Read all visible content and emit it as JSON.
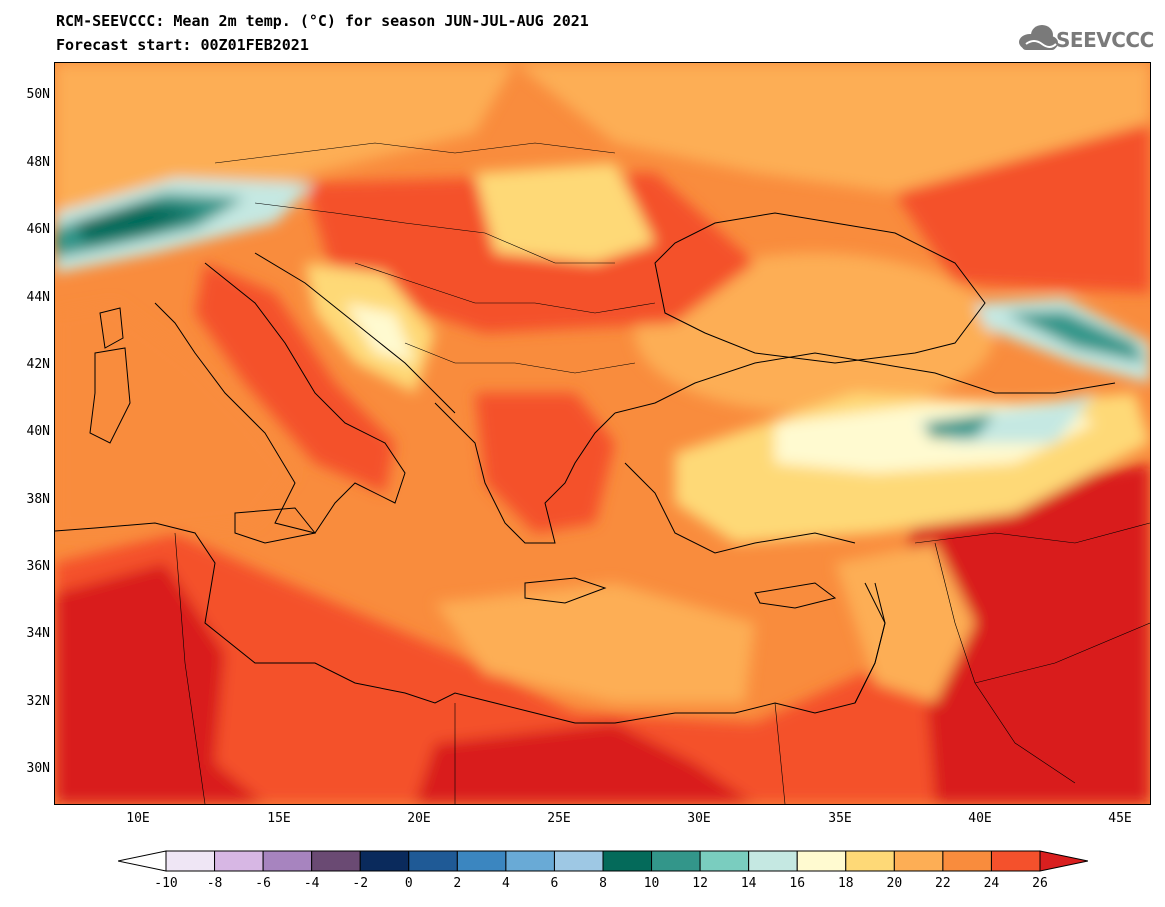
{
  "header": {
    "title": "RCM-SEEVCCC: Mean 2m temp. (°C) for season JUN-JUL-AUG 2021",
    "subtitle": "Forecast start: 00Z01FEB2021",
    "logo_text": "SEEVCCC"
  },
  "map": {
    "type": "filled-contour map",
    "region": "Balkans, Eastern Mediterranean, Black Sea, Anatolia",
    "lat_labels": [
      "50N",
      "48N",
      "46N",
      "44N",
      "42N",
      "40N",
      "38N",
      "36N",
      "34N",
      "32N",
      "30N"
    ],
    "lat_values": [
      50,
      48,
      46,
      44,
      42,
      40,
      38,
      36,
      34,
      32,
      30
    ],
    "lon_labels": [
      "10E",
      "15E",
      "20E",
      "25E",
      "30E",
      "35E",
      "40E",
      "45E"
    ],
    "lon_values": [
      10,
      15,
      20,
      25,
      30,
      35,
      40,
      45
    ],
    "lat_range": [
      29,
      51
    ],
    "lon_range": [
      7,
      46
    ]
  },
  "colorbar": {
    "labels": [
      "-10",
      "-8",
      "-6",
      "-4",
      "-2",
      "0",
      "2",
      "4",
      "6",
      "8",
      "10",
      "12",
      "14",
      "16",
      "18",
      "20",
      "22",
      "24",
      "26"
    ],
    "colors": [
      "#ffffff",
      "#efe6f5",
      "#d7b7e4",
      "#a784bf",
      "#6a4a73",
      "#0a2a5c",
      "#1f5a96",
      "#3b86c0",
      "#69aad6",
      "#9ec8e4",
      "#046a5a",
      "#33968a",
      "#7acdbf",
      "#c5e8e2",
      "#fffad0",
      "#fed977",
      "#fdae55",
      "#f98c3d",
      "#f4512c",
      "#d91f1f"
    ]
  }
}
